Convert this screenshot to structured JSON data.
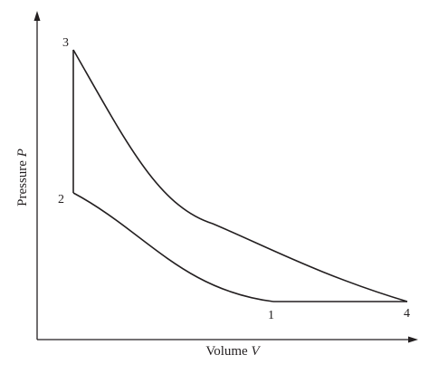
{
  "axes": {
    "y_label_text": "Pressure ",
    "y_label_var": "P",
    "x_label_text": "Volume ",
    "x_label_var": "V"
  },
  "states": [
    {
      "id": "1",
      "label": "1"
    },
    {
      "id": "2",
      "label": "2"
    },
    {
      "id": "3",
      "label": "3"
    },
    {
      "id": "4",
      "label": "4"
    }
  ],
  "processes": [
    {
      "from": "1",
      "to": "2",
      "kind": "compression curve"
    },
    {
      "from": "2",
      "to": "3",
      "kind": "vertical line"
    },
    {
      "from": "3",
      "to": "4",
      "kind": "expansion curve"
    },
    {
      "from": "4",
      "to": "1",
      "kind": "straight line"
    }
  ]
}
